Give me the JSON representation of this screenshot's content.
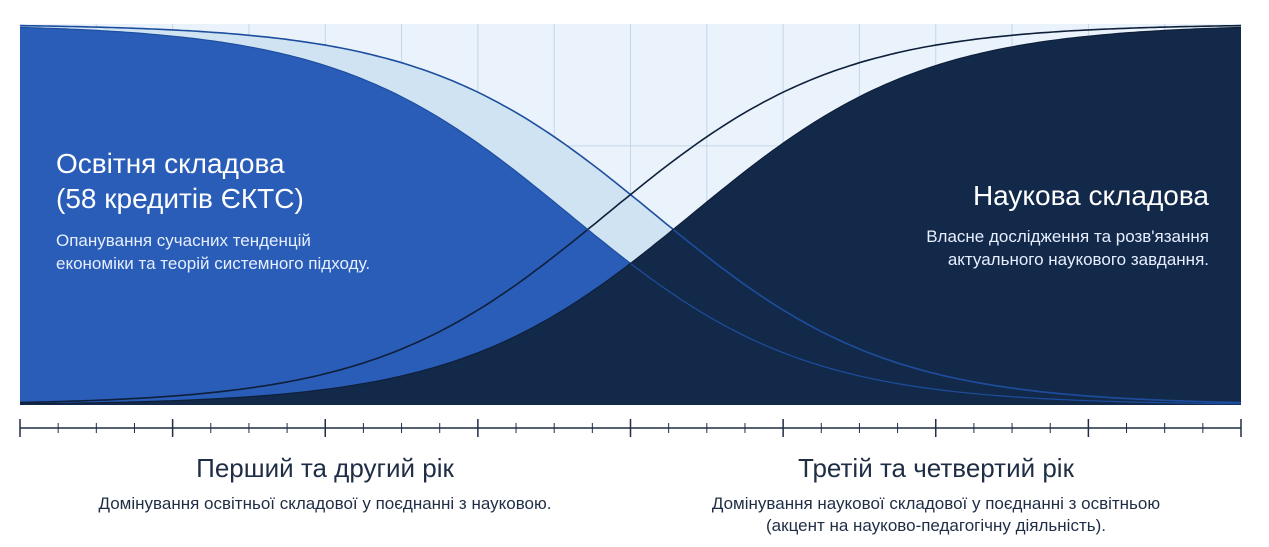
{
  "education": {
    "title_line1": "Освітня складова",
    "title_line2": "(58 кредитів ЄКТС)",
    "description": "Опанування сучасних тенденцій економіки та теорій системного підходу."
  },
  "science": {
    "title": "Наукова складова",
    "description_line1": "Власне дослідження та розв'язання",
    "description_line2": "актуального наукового завдання."
  },
  "periods": [
    {
      "title": "Перший та другий рік",
      "description": "Домінування освітньої складової у поєднанні з науковою."
    },
    {
      "title": "Третій та четвертий рік",
      "description_line1": "Домінування наукової складової у поєднанні з освітньою",
      "description_line2": "(акцент на науково-педагогічну діяльність)."
    }
  ],
  "colors": {
    "education_fill": "#2a5db8",
    "science_fill": "#13294a",
    "transition_fill": "#cfe3f3",
    "background_fill": "#eaf3fb",
    "axis": "#1f2d45"
  }
}
